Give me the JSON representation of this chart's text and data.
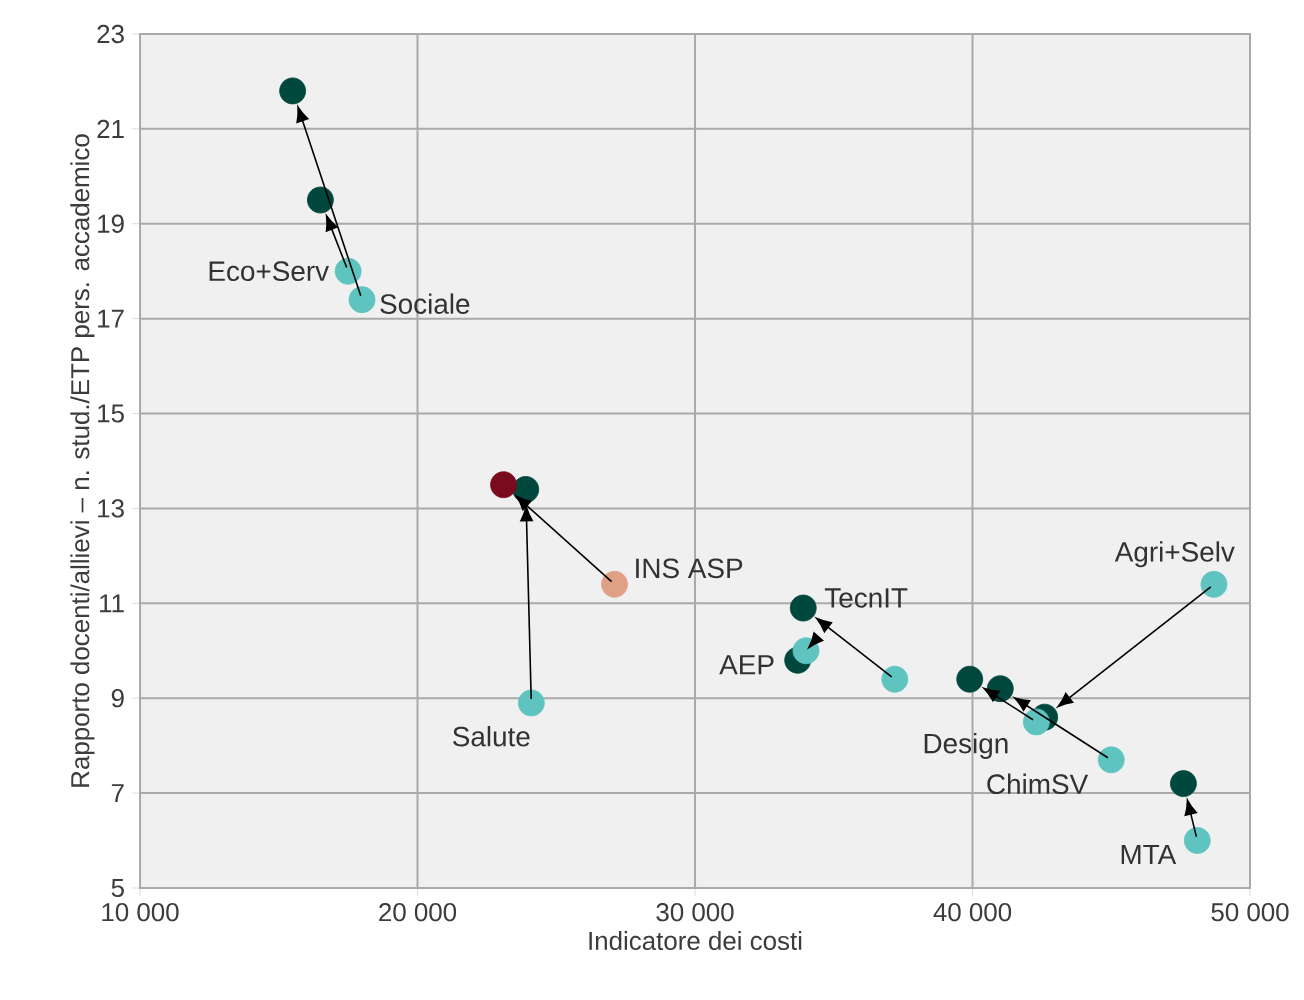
{
  "chart_data": {
    "type": "scatter",
    "xlabel": "Indicatore dei costi",
    "ylabel": "Rapporto docenti/allievi – n. stud./ETP pers. accademico",
    "xlim": [
      10000,
      50000
    ],
    "ylim": [
      5,
      23
    ],
    "xticks": [
      {
        "value": 10000,
        "label": "10 000"
      },
      {
        "value": 20000,
        "label": "20 000"
      },
      {
        "value": 30000,
        "label": "30 000"
      },
      {
        "value": 40000,
        "label": "40 000"
      },
      {
        "value": 50000,
        "label": "50 000"
      }
    ],
    "yticks": [
      5,
      7,
      9,
      11,
      13,
      15,
      17,
      19,
      21,
      23
    ],
    "grid": true,
    "series": [
      {
        "x": [
          17500,
          18000,
          24100,
          27100,
          34000,
          37200,
          42300,
          45000,
          48700,
          48100
        ],
        "values": [
          18.0,
          17.4,
          8.9,
          11.4,
          10.0,
          9.4,
          8.5,
          7.7,
          11.4,
          6.0
        ],
        "colors": [
          "#5fc4bf",
          "#5fc4bf",
          "#5fc4bf",
          "#e0a086",
          "#5fc4bf",
          "#5fc4bf",
          "#5fc4bf",
          "#5fc4bf",
          "#5fc4bf",
          "#5fc4bf"
        ]
      },
      {
        "x": [
          16500,
          15500,
          23900,
          23100,
          33700,
          33900,
          39900,
          41000,
          42600,
          47600
        ],
        "values": [
          19.5,
          21.8,
          13.4,
          13.5,
          9.8,
          10.9,
          9.4,
          9.2,
          8.6,
          7.2
        ],
        "colors": [
          "#00473e",
          "#00473e",
          "#00473e",
          "#7a0a1e",
          "#00473e",
          "#00473e",
          "#00473e",
          "#00473e",
          "#00473e",
          "#00473e"
        ]
      }
    ],
    "annotations": [
      {
        "text": "Eco+Serv",
        "x": 17500,
        "y": 18.0
      },
      {
        "text": "Sociale",
        "x": 18000,
        "y": 17.4
      },
      {
        "text": "Salute",
        "x": 24100,
        "y": 8.9
      },
      {
        "text": "INS ASP",
        "x": 27100,
        "y": 11.4
      },
      {
        "text": "AEP",
        "x": 34000,
        "y": 10.0
      },
      {
        "text": "TecnIT",
        "x": 33900,
        "y": 10.9
      },
      {
        "text": "Design",
        "x": 42300,
        "y": 8.5
      },
      {
        "text": "ChimSV",
        "x": 45000,
        "y": 7.7
      },
      {
        "text": "Agri+Selv",
        "x": 48700,
        "y": 11.4
      },
      {
        "text": "MTA",
        "x": 48100,
        "y": 6.0
      }
    ]
  }
}
